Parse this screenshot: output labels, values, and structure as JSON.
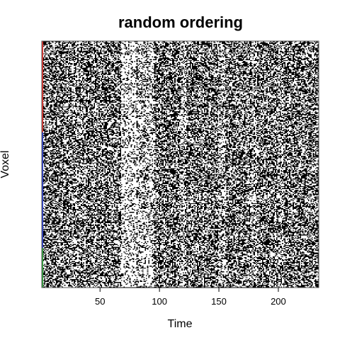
{
  "chart_data": {
    "type": "heatmap",
    "title": "random ordering",
    "xlabel": "Time",
    "ylabel": "Voxel",
    "xlim": [
      1,
      234
    ],
    "x_ticks": [
      50,
      100,
      150,
      200
    ],
    "x_tick_labels": [
      "50",
      "100",
      "150",
      "200"
    ],
    "grid": false,
    "legend": "none",
    "colormap": [
      "#000000",
      "#ffffff"
    ],
    "value_encoding": "binary black/white pixel noise; white = high, black = low",
    "row_groups": [
      {
        "color": "#e8312a",
        "share": 0.37
      },
      {
        "color": "#2a3fd1",
        "share": 0.47
      },
      {
        "color": "#2ea83a",
        "share": 0.16
      }
    ],
    "bright_time_bands": [
      {
        "range": [
          68,
          80
        ],
        "level": 0.3
      },
      {
        "range": [
          82,
          95
        ],
        "level": 0.22
      },
      {
        "range": [
          118,
          122
        ],
        "level": 0.18
      },
      {
        "range": [
          150,
          155
        ],
        "level": 0.15
      },
      {
        "range": [
          178,
          182
        ],
        "level": 0.14
      },
      {
        "range": [
          200,
          204
        ],
        "level": 0.14
      },
      {
        "range": [
          26,
          30
        ],
        "level": 0.1
      }
    ]
  }
}
